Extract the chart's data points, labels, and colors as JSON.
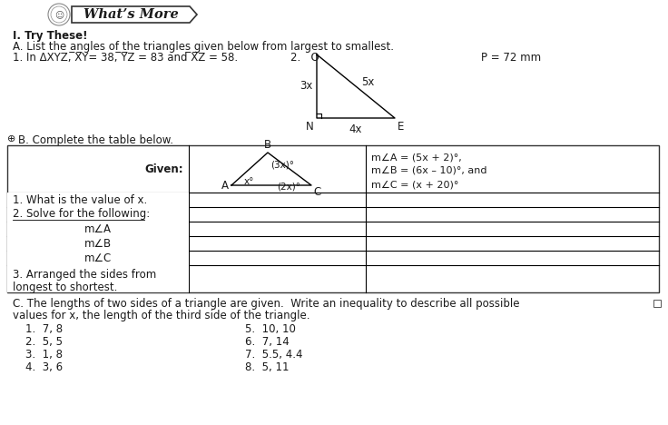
{
  "bg_color": "#ffffff",
  "title": "What’s More",
  "section_i": "I. Try These!",
  "section_a": "A. List the angles of the triangles given below from largest to smallest.",
  "p1_prefix": "1. In ΔXYZ, ",
  "p1_xy": "̅X̅Y",
  "p1_mid1": "= 38, ",
  "p1_yz": "̅Y̅Z",
  "p1_mid2": " = 83 and ",
  "p1_xz": "̅X̅Z",
  "p1_suffix": " = 58.",
  "p_label": "P = 72 mm",
  "section_b": "B. Complete the table below.",
  "given_label": "Given:",
  "triangle_b_vertex_labels": [
    "B",
    "A",
    "C"
  ],
  "triangle_b_angle_labels": [
    "(3x)°",
    "x°",
    "(2x)°"
  ],
  "given_text": [
    "m∠A = (5x + 2)°,",
    "m∠B = (6x – 10)°, and",
    "m∠C = (x + 20)°"
  ],
  "table_row_labels": [
    "1. What is the value of x.",
    "2. Solve for the following:",
    "m∠A",
    "m∠B",
    "m∠C",
    "3. Arranged the sides from",
    "longest to shortest."
  ],
  "section_c_line1": "C. The lengths of two sides of a triangle are given.  Write an inequality to describe all possible",
  "section_c_line2": "values for x, the length of the third side of the triangle.",
  "problems_col1": [
    "1.  7, 8",
    "2.  5, 5",
    "3.  1, 8",
    "4.  3, 6"
  ],
  "problems_col2": [
    "5.  10, 10",
    "6.  7, 14",
    "7.  5.5, 4.4",
    "8.  5, 11"
  ],
  "text_color": "#1a1a1a"
}
